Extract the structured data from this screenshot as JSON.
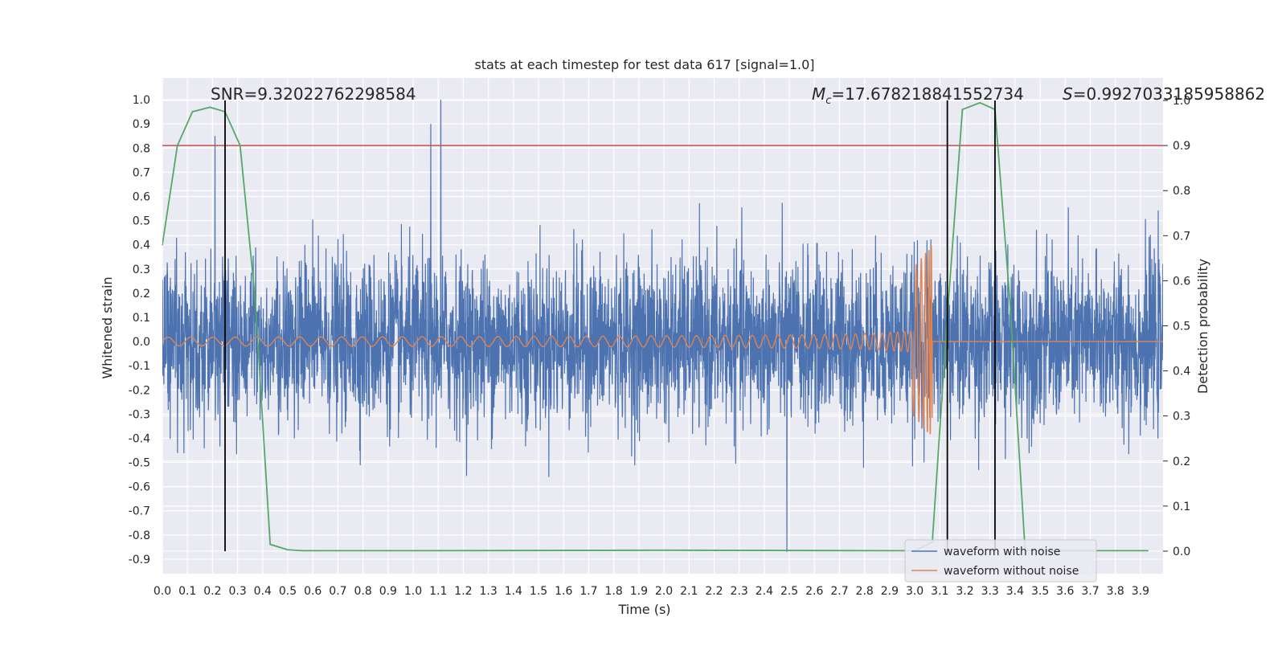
{
  "chart_data": {
    "type": "line",
    "title": "stats at each timestep for test data 617 [signal=1.0]",
    "xlabel": "Time (s)",
    "ylabel": "Whitened strain",
    "ylabel_right": "Detection probability",
    "xlim": [
      0.0,
      3.99
    ],
    "ylim": [
      -0.96,
      1.09
    ],
    "ylim_right": [
      -0.05,
      1.05
    ],
    "grid": true,
    "legend_position": "lower-right",
    "xticks": [
      "0.0",
      "0.1",
      "0.2",
      "0.3",
      "0.4",
      "0.5",
      "0.6",
      "0.7",
      "0.8",
      "0.9",
      "1.0",
      "1.1",
      "1.2",
      "1.3",
      "1.4",
      "1.5",
      "1.6",
      "1.7",
      "1.8",
      "1.9",
      "2.0",
      "2.1",
      "2.2",
      "2.3",
      "2.4",
      "2.5",
      "2.6",
      "2.7",
      "2.8",
      "2.9",
      "3.0",
      "3.1",
      "3.2",
      "3.3",
      "3.4",
      "3.5",
      "3.6",
      "3.7",
      "3.8",
      "3.9"
    ],
    "yticks": [
      "1.0",
      "0.9",
      "0.8",
      "0.7",
      "0.6",
      "0.5",
      "0.4",
      "0.3",
      "0.2",
      "0.1",
      "0.0",
      "-0.1",
      "-0.2",
      "-0.3",
      "-0.4",
      "-0.5",
      "-0.6",
      "-0.7",
      "-0.8",
      "-0.9"
    ],
    "yticks_right": [
      "1.0",
      "0.9",
      "0.8",
      "0.7",
      "0.6",
      "0.5",
      "0.4",
      "0.3",
      "0.2",
      "0.1",
      "0.0"
    ],
    "annotations": {
      "snr": "SNR=9.32022762298584",
      "mc_symbol": "M",
      "mc_sub": "c",
      "mc_value": "=17.678218841552734",
      "s_symbol": "S",
      "s_value": "=0.9927033185958862"
    },
    "series": [
      {
        "name": "waveform with noise",
        "color": "#4c72b0",
        "note": "dense noise band, amplitude envelope approx ±0.45 with peaks to 1.0 and -0.87",
        "peaks": [
          {
            "x": 0.21,
            "y": 0.85
          },
          {
            "x": 1.07,
            "y": 0.9
          },
          {
            "x": 1.11,
            "y": 1.0
          },
          {
            "x": 2.49,
            "y": -0.87
          }
        ]
      },
      {
        "name": "waveform without noise",
        "color": "#dd8452",
        "chirp_start": 0.0,
        "chirp_end": 3.07,
        "start_amplitude": 0.02,
        "end_amplitude": 0.4,
        "end_frequency_hz": 120
      },
      {
        "name": "detection probability",
        "color": "#55a868",
        "axis": "right",
        "x": [
          0.0,
          0.06,
          0.12,
          0.19,
          0.25,
          0.31,
          0.37,
          0.43,
          0.5,
          0.56,
          0.62,
          1.0,
          2.0,
          2.9,
          3.0,
          3.07,
          3.13,
          3.19,
          3.26,
          3.32,
          3.38,
          3.44,
          3.5,
          3.6,
          3.93
        ],
        "y": [
          0.68,
          0.9,
          0.975,
          0.985,
          0.975,
          0.9,
          0.56,
          0.015,
          0.003,
          0.001,
          0.001,
          0.001,
          0.002,
          0.001,
          0.001,
          0.02,
          0.52,
          0.98,
          0.995,
          0.98,
          0.55,
          0.002,
          0.001,
          0.001,
          0.001
        ]
      }
    ],
    "threshold_line": {
      "y_right": 0.9,
      "color": "#c44e52"
    },
    "vertical_markers": [
      0.25,
      3.13,
      3.32
    ]
  }
}
